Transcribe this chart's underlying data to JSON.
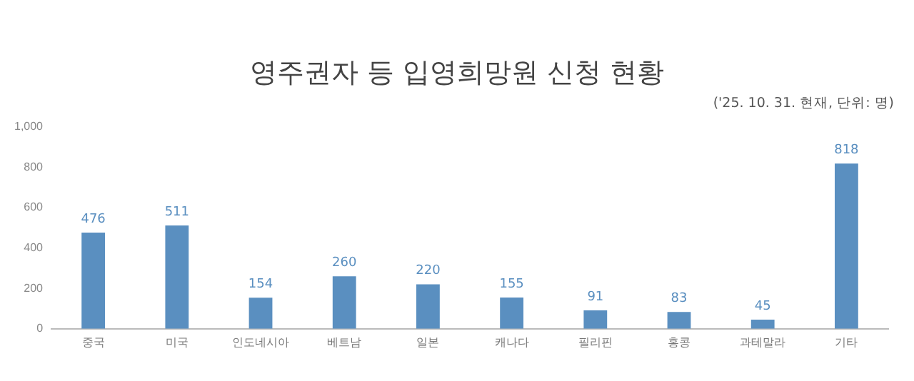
{
  "chart_data": {
    "type": "bar",
    "title": "영주권자 등 입영희망원 신청 현황",
    "subtitle": "('25. 10. 31. 현재, 단위: 명)",
    "categories": [
      "중국",
      "미국",
      "인도네시아",
      "베트남",
      "일본",
      "캐나다",
      "필리핀",
      "홍콩",
      "과테말라",
      "기타"
    ],
    "values": [
      476,
      511,
      154,
      260,
      220,
      155,
      91,
      83,
      45,
      818
    ],
    "color": "#5a8fc0",
    "ylim": [
      0,
      1000
    ],
    "yticks": [
      0,
      200,
      400,
      600,
      800,
      {
        "value": 1000,
        "label": "1,000"
      }
    ],
    "grid": false,
    "legend": false,
    "data_labels": true
  }
}
